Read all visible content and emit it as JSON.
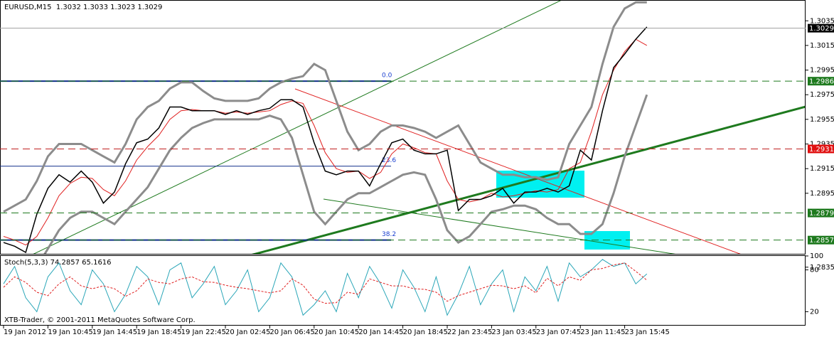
{
  "chart_data": [
    {
      "type": "line",
      "title": "EURUSD,M15  1.3032 1.3033 1.3023 1.3029",
      "categories": [
        "19 Jan 2012",
        null,
        null,
        null,
        "19 Jan 10:45",
        null,
        null,
        null,
        "19 Jan 14:45",
        null,
        null,
        null,
        "19 Jan 18:45",
        null,
        null,
        null,
        "19 Jan 22:45",
        null,
        null,
        null,
        "20 Jan 02:45",
        null,
        null,
        null,
        "20 Jan 06:45",
        null,
        null,
        null,
        "20 Jan 10:45",
        null,
        null,
        null,
        "20 Jan 14:45",
        null,
        null,
        null,
        "20 Jan 18:45",
        null,
        null,
        null,
        "22 Jan 23:45",
        null,
        null,
        null,
        "23 Jan 03:45",
        null,
        null,
        null,
        "23 Jan 07:45",
        null,
        null,
        null,
        "23 Jan 11:45",
        null,
        null,
        null,
        "23 Jan 15:45",
        null,
        null
      ],
      "series": [
        {
          "color": "#8c8c8c",
          "width": 3,
          "values": [
            1.288,
            1.2885,
            1.289,
            1.2905,
            1.2925,
            1.2935,
            1.2935,
            1.2935,
            1.293,
            1.2925,
            1.292,
            1.2935,
            1.2955,
            1.2965,
            1.297,
            1.298,
            1.2985,
            1.2985,
            1.2978,
            1.2972,
            1.297,
            1.297,
            1.297,
            1.2972,
            1.298,
            1.2985,
            1.2988,
            1.299,
            1.3,
            1.2995,
            1.297,
            1.2945,
            1.293,
            1.2935,
            1.2945,
            1.295,
            1.295,
            1.2948,
            1.2945,
            1.294,
            1.2945,
            1.295,
            1.2935,
            1.292,
            1.2915,
            1.291,
            1.291,
            1.2908,
            1.2908,
            1.2906,
            1.2908,
            1.2935,
            1.295,
            1.2965,
            1.3,
            1.303,
            1.3045,
            1.305,
            1.305
          ]
        },
        {
          "color": "#8c8c8c",
          "width": 3,
          "values": [
            1.2835,
            1.283,
            1.283,
            1.2835,
            1.285,
            1.2865,
            1.2875,
            1.288,
            1.288,
            1.2875,
            1.287,
            1.288,
            1.289,
            1.29,
            1.2915,
            1.293,
            1.294,
            1.2948,
            1.2952,
            1.2955,
            1.2955,
            1.2955,
            1.2955,
            1.2955,
            1.2958,
            1.2955,
            1.294,
            1.291,
            1.288,
            1.287,
            1.288,
            1.289,
            1.2895,
            1.2895,
            1.29,
            1.2905,
            1.291,
            1.2912,
            1.291,
            1.289,
            1.2865,
            1.2855,
            1.286,
            1.287,
            1.288,
            1.2882,
            1.2885,
            1.2885,
            1.2882,
            1.2875,
            1.287,
            1.287,
            1.2862,
            1.2862,
            1.287,
            1.2895,
            1.2925,
            1.295,
            1.2975
          ]
        },
        {
          "color": "#e02020",
          "width": 1,
          "values": [
            1.286,
            1.2857,
            1.2853,
            1.286,
            1.2875,
            1.2893,
            1.2903,
            1.2908,
            1.2907,
            1.2898,
            1.2893,
            1.2905,
            1.2922,
            1.2933,
            1.2942,
            1.2955,
            1.2962,
            1.2963,
            1.2962,
            1.2962,
            1.296,
            1.2961,
            1.296,
            1.2961,
            1.2962,
            1.2967,
            1.297,
            1.2968,
            1.295,
            1.2928,
            1.2915,
            1.2912,
            1.2913,
            1.2907,
            1.2912,
            1.2927,
            1.2935,
            1.2932,
            1.2928,
            1.2927,
            1.2905,
            1.289,
            1.2888,
            1.289,
            1.2895,
            1.2892,
            1.2893,
            1.2895,
            1.2897,
            1.2896,
            1.2898,
            1.2915,
            1.292,
            1.2945,
            1.2975,
            1.2995,
            1.301,
            1.302,
            1.3015
          ]
        },
        {
          "color": "#000000",
          "width": 1.5,
          "values": [
            1.2855,
            1.2852,
            1.2847,
            1.2878,
            1.2899,
            1.291,
            1.2904,
            1.2913,
            1.2904,
            1.2887,
            1.2896,
            1.2919,
            1.2936,
            1.2939,
            1.2948,
            1.2965,
            1.2965,
            1.2962,
            1.2962,
            1.2962,
            1.2959,
            1.2962,
            1.2959,
            1.2962,
            1.2964,
            1.2971,
            1.2971,
            1.2965,
            1.2936,
            1.2913,
            1.291,
            1.2913,
            1.2913,
            1.2901,
            1.2919,
            1.2936,
            1.2939,
            1.293,
            1.2927,
            1.2927,
            1.293,
            1.2881,
            1.289,
            1.289,
            1.2893,
            1.2899,
            1.2887,
            1.2896,
            1.2896,
            1.2899,
            1.2896,
            1.2901,
            1.293,
            1.2922,
            1.2962,
            1.2997,
            1.3008,
            1.302,
            1.303
          ]
        }
      ],
      "ylim": [
        1.2832,
        1.3049
      ],
      "yticks": [
        1.3035,
        1.3015,
        1.2995,
        1.2975,
        1.2955,
        1.2935,
        1.2915,
        1.2895,
        1.2835
      ],
      "levels": [
        {
          "price": 1.3029,
          "color": "#000000",
          "line": "#a0a0a0"
        },
        {
          "price": 1.2986,
          "color": "#1e7a1e",
          "line": "#1e7a1e"
        },
        {
          "price": 1.2931,
          "color": "#e01010",
          "line": "#c02020"
        },
        {
          "price": 1.2879,
          "color": "#1e7a1e",
          "line": "#1e7a1e"
        },
        {
          "price": 1.2857,
          "color": "#1e7a1e",
          "line": "#1e7a1e"
        }
      ],
      "fibonacci": [
        {
          "level": {
            "value": 0,
            "label": "0.0"
          },
          "price": 1.2986
        },
        {
          "level": 23.6,
          "price": 1.2917
        },
        {
          "level": 38.2,
          "price": 1.2857
        }
      ]
    },
    {
      "type": "line",
      "title": "Stoch(5,3,3) 74.2857 65.1616",
      "copyright": "XTB-Trader, © 2001-2011 MetaQuotes Software Corp.",
      "series": [
        {
          "color": "#2aa6b8",
          "width": 1,
          "values": [
            60,
            85,
            40,
            20,
            70,
            90,
            50,
            30,
            80,
            60,
            20,
            45,
            85,
            70,
            30,
            80,
            90,
            40,
            60,
            85,
            30,
            50,
            80,
            20,
            40,
            90,
            70,
            15,
            30,
            50,
            20,
            75,
            40,
            85,
            60,
            25,
            80,
            55,
            20,
            70,
            15,
            45,
            85,
            30,
            60,
            80,
            20,
            70,
            50,
            85,
            35,
            90,
            70,
            80,
            95,
            85,
            90,
            60,
            74.2857
          ]
        },
        {
          "color": "#e02020",
          "width": 1,
          "dash": true,
          "values": [
            55,
            70,
            62,
            48,
            43,
            60,
            70,
            57,
            53,
            57,
            53,
            42,
            50,
            67,
            62,
            60,
            67,
            70,
            63,
            62,
            58,
            55,
            53,
            50,
            47,
            50,
            67,
            58,
            38,
            32,
            33,
            48,
            45,
            67,
            62,
            57,
            57,
            53,
            52,
            48,
            35,
            43,
            48,
            53,
            58,
            57,
            53,
            57,
            47,
            68,
            57,
            70,
            65,
            80,
            82,
            87,
            90,
            78,
            65.1616
          ]
        }
      ],
      "ylim": [
        0,
        100
      ],
      "yticks": [
        100,
        80,
        20
      ]
    }
  ]
}
